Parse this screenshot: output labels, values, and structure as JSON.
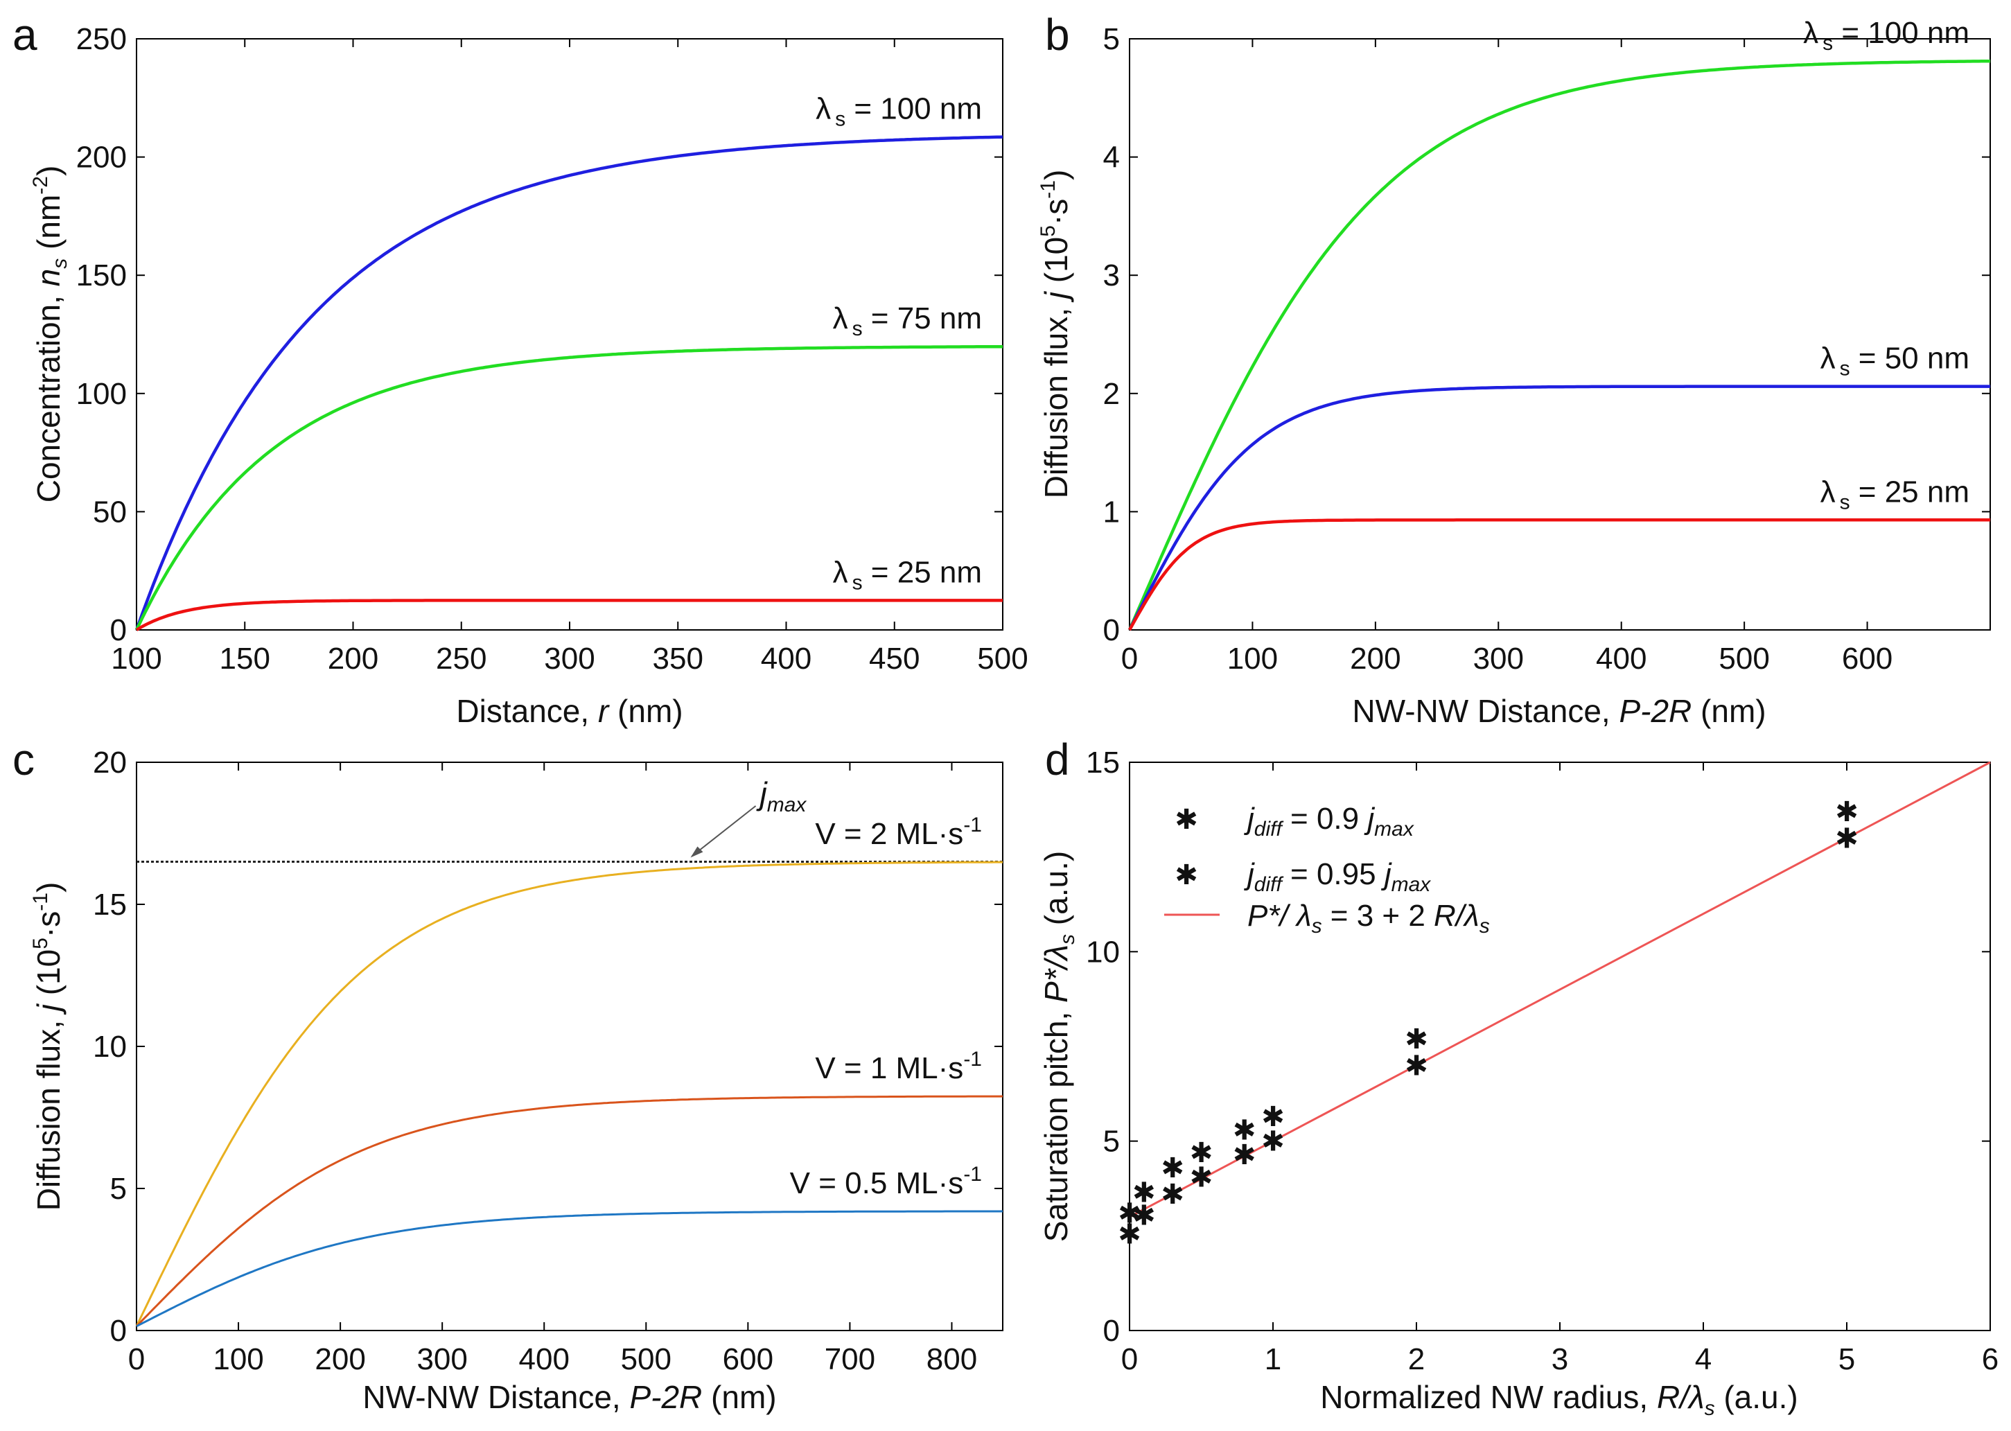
{
  "chart_data": [
    {
      "id": "a",
      "panel_label": "a",
      "type": "line",
      "xlabel": "Distance, ",
      "xlabel_var": "r",
      "xlabel_unit": " (nm)",
      "ylabel": "Concentration, ",
      "ylabel_var": "n",
      "ylabel_var_sub": "s",
      "ylabel_unit": " (nm",
      "ylabel_unit_sup": "-2",
      "ylabel_unit_close": ")",
      "xlim": [
        100,
        500
      ],
      "ylim": [
        0,
        250
      ],
      "xticks": [
        100,
        150,
        200,
        250,
        300,
        350,
        400,
        450,
        500
      ],
      "yticks": [
        0,
        50,
        100,
        150,
        200,
        250
      ],
      "series": [
        {
          "name": "λ s = 100 nm",
          "label_lead": "λ",
          "label_sub": "s",
          "label_tail": " = 100 nm",
          "color": "#1f1fe0",
          "kind": "conc",
          "plateau": 210,
          "scale": 81,
          "label_at": [
            100,
            212
          ]
        },
        {
          "name": "λ s = 75 nm",
          "label_lead": "λ",
          "label_sub": "s",
          "label_tail": " = 75 nm",
          "color": "#22dd22",
          "kind": "conc",
          "plateau": 120,
          "scale": 62,
          "label_at": [
            75,
            122
          ]
        },
        {
          "name": "λ s = 25 nm",
          "label_lead": "λ",
          "label_sub": "s",
          "label_tail": " = 25 nm",
          "color": "#ee1111",
          "kind": "conc",
          "plateau": 12.5,
          "scale": 22,
          "label_at": [
            25,
            14
          ]
        }
      ]
    },
    {
      "id": "b",
      "panel_label": "b",
      "type": "line",
      "xlabel": "NW-NW Distance, ",
      "xlabel_var": "P-2R",
      "xlabel_unit": " (nm)",
      "ylabel": "Diffusion flux, ",
      "ylabel_var": "j",
      "ylabel_unit": " (10",
      "ylabel_unit_sup": "5",
      "ylabel_unit_mid": "·s",
      "ylabel_unit_sup2": "-1",
      "ylabel_unit_close": ")",
      "xlim": [
        0,
        700
      ],
      "ylim": [
        0,
        5
      ],
      "xticks": [
        0,
        100,
        200,
        300,
        400,
        500,
        600
      ],
      "yticks": [
        0,
        1,
        2,
        3,
        4,
        5
      ],
      "series": [
        {
          "name": "λ s = 100 nm",
          "label_lead": "λ",
          "label_sub": "s",
          "label_tail": " = 100 nm",
          "color": "#22dd22",
          "kind": "tanh",
          "plateau": 4.82,
          "lambda": 100
        },
        {
          "name": "λ s = 50 nm",
          "label_lead": "λ",
          "label_sub": "s",
          "label_tail": " = 50 nm",
          "color": "#1f1fe0",
          "kind": "tanh",
          "plateau": 2.06,
          "lambda": 50
        },
        {
          "name": "λ s = 25 nm",
          "label_lead": "λ",
          "label_sub": "s",
          "label_tail": " = 25 nm",
          "color": "#ee1111",
          "kind": "tanh",
          "plateau": 0.93,
          "lambda": 25
        }
      ]
    },
    {
      "id": "c",
      "panel_label": "c",
      "type": "line",
      "xlabel": "NW-NW Distance, ",
      "xlabel_var": "P-2R",
      "xlabel_unit": " (nm)",
      "ylabel": "Diffusion flux, ",
      "ylabel_var": "j",
      "ylabel_unit": " (10",
      "ylabel_unit_sup": "5",
      "ylabel_unit_mid": "·s",
      "ylabel_unit_sup2": "-1",
      "ylabel_unit_close": ")",
      "xlim": [
        0,
        850
      ],
      "ylim": [
        0,
        20
      ],
      "xticks": [
        0,
        100,
        200,
        300,
        400,
        500,
        600,
        700,
        800
      ],
      "yticks": [
        0,
        5,
        10,
        15,
        20
      ],
      "jmax_value": 16.5,
      "jmax_label": "j",
      "jmax_label_sub": "max",
      "series": [
        {
          "name": "V = 2 ML·s-1",
          "label_text": "V = 2 ML·s",
          "label_sup": "-1",
          "color": "#e8b020",
          "kind": "tanh",
          "plateau": 16.5,
          "lambda": 110,
          "offset": 0.15
        },
        {
          "name": "V = 1 ML·s-1",
          "label_text": "V = 1 ML·s",
          "label_sup": "-1",
          "color": "#d9541c",
          "kind": "tanh",
          "plateau": 8.25,
          "lambda": 110,
          "offset": 0.15
        },
        {
          "name": "V = 0.5 ML·s-1",
          "label_text": "V = 0.5 ML·s",
          "label_sup": "-1",
          "color": "#1f77c4",
          "kind": "tanh",
          "plateau": 4.2,
          "lambda": 110,
          "offset": 0.15
        }
      ]
    },
    {
      "id": "d",
      "panel_label": "d",
      "type": "scatter",
      "xlabel": "Normalized  NW radius, ",
      "xlabel_var": "R/λ",
      "xlabel_var_sub": "s",
      "xlabel_unit": " (a.u.)",
      "ylabel": "Saturation pitch, ",
      "ylabel_var": "P*/λ",
      "ylabel_var_sub": "s",
      "ylabel_unit": " (a.u.)",
      "xlim": [
        0,
        6
      ],
      "ylim": [
        0,
        15
      ],
      "xticks": [
        0,
        1,
        2,
        3,
        4,
        5,
        6
      ],
      "yticks": [
        0,
        5,
        10,
        15
      ],
      "series": [
        {
          "name": "j diff = 0.9 j max",
          "color": "#ee1111",
          "marker": "*",
          "x": [
            0,
            0.1,
            0.3,
            0.5,
            0.8,
            1.0,
            2.0,
            5.0
          ],
          "y": [
            2.55,
            3.05,
            3.6,
            4.05,
            4.65,
            5.0,
            7.0,
            13.0
          ]
        },
        {
          "name": "j diff = 0.95 j max",
          "color": "#1515e0",
          "marker": "*",
          "x": [
            0,
            0.1,
            0.3,
            0.5,
            0.8,
            1.0,
            2.0,
            5.0
          ],
          "y": [
            3.1,
            3.65,
            4.3,
            4.7,
            5.3,
            5.65,
            7.7,
            13.7
          ]
        },
        {
          "name": "P*/λs = 3 + 2 R/λs",
          "color": "#ee5555",
          "kind": "line",
          "intercept": 3,
          "slope": 2
        }
      ],
      "legend": [
        {
          "j": "j",
          "sub": "diff",
          "mid": " = 0.9 ",
          "j2": "j",
          "sub2": "max",
          "color": "#ee1111"
        },
        {
          "j": "j",
          "sub": "diff",
          "mid": " = 0.95 ",
          "j2": "j",
          "sub2": "max",
          "color": "#1515e0"
        },
        {
          "p": "P*/ λ",
          "sub": "s",
          "mid": " = 3 + 2 ",
          "r": "R/λ",
          "sub2": "s",
          "color": "#ee5555"
        }
      ]
    }
  ]
}
